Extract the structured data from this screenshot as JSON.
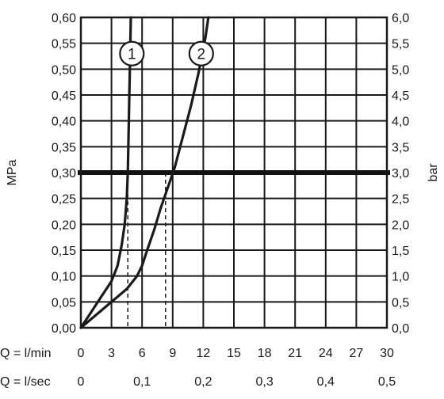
{
  "chart_data": {
    "type": "line",
    "ylabel_left": "MPa",
    "ylabel_right": "bar",
    "x_row_label_flow_min": "Q = l/min",
    "x_row_label_flow_sec": "Q = l/sec",
    "xlim": [
      0,
      30
    ],
    "ylim": [
      0,
      0.6
    ],
    "x_ticks": [
      "0",
      "3",
      "6",
      "9",
      "12",
      "15",
      "18",
      "21",
      "24",
      "27",
      "30"
    ],
    "x_ticks_values": [
      0,
      3,
      6,
      9,
      12,
      15,
      18,
      21,
      24,
      27,
      30
    ],
    "x2_ticks": [
      "0",
      "0,1",
      "0,2",
      "0,3",
      "0,4",
      "0,5"
    ],
    "x2_ticks_values": [
      0,
      0.1,
      0.2,
      0.3,
      0.4,
      0.5
    ],
    "y_ticks_left": [
      "0,00",
      "0,05",
      "0,10",
      "0,15",
      "0,20",
      "0,25",
      "0,30",
      "0,35",
      "0,40",
      "0,45",
      "0,50",
      "0,55",
      "0,60"
    ],
    "y_ticks_right": [
      "0,0",
      "0,5",
      "1,0",
      "1,5",
      "2,0",
      "2,5",
      "3,0",
      "3,5",
      "4,0",
      "4,5",
      "5,0",
      "5,5",
      "6,0"
    ],
    "y_ticks_values": [
      0,
      0.05,
      0.1,
      0.15,
      0.2,
      0.25,
      0.3,
      0.35,
      0.4,
      0.45,
      0.5,
      0.55,
      0.6
    ],
    "grid": true,
    "reference_line": {
      "y": 0.3
    },
    "series": [
      {
        "name": "1",
        "x": [
          0,
          1,
          2,
          3,
          3.6,
          4.0,
          4.3,
          4.5,
          4.6,
          4.7,
          4.75,
          4.8,
          4.85,
          4.9
        ],
        "y": [
          0,
          0.03,
          0.06,
          0.09,
          0.12,
          0.16,
          0.2,
          0.25,
          0.3,
          0.4,
          0.45,
          0.5,
          0.55,
          0.6
        ],
        "drop_line_x": 4.6,
        "marker_at": [
          5.0,
          0.53
        ]
      },
      {
        "name": "2",
        "x": [
          0,
          1.5,
          3,
          4.5,
          5.5,
          6.0,
          6.5,
          7.2,
          7.8,
          8.5,
          9.2,
          10.0,
          10.8,
          11.5,
          12.2,
          12.5
        ],
        "y": [
          0,
          0.025,
          0.05,
          0.075,
          0.1,
          0.12,
          0.15,
          0.19,
          0.23,
          0.27,
          0.31,
          0.37,
          0.43,
          0.49,
          0.56,
          0.6
        ],
        "drop_line_x": 8.3,
        "marker_at": [
          11.8,
          0.53
        ]
      }
    ]
  }
}
